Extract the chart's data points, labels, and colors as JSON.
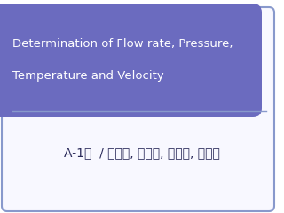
{
  "title_text_line1": "Determination of Flow rate, Pressure,",
  "title_text_line2": "Temperature and Velocity",
  "subtitle_text": "A-1조  / 김병섭, 이승준, 김휘문, 윤동준",
  "title_bg_color": "#6b6bbf",
  "title_text_color": "#ffffff",
  "subtitle_text_color": "#2a2a5a",
  "outer_border_color": "#8899cc",
  "bg_color": "#ffffff",
  "inner_bg_color": "#f8f8ff",
  "title_fontsize": 9.5,
  "subtitle_fontsize": 10.0,
  "small_box_border_color": "#8899cc"
}
